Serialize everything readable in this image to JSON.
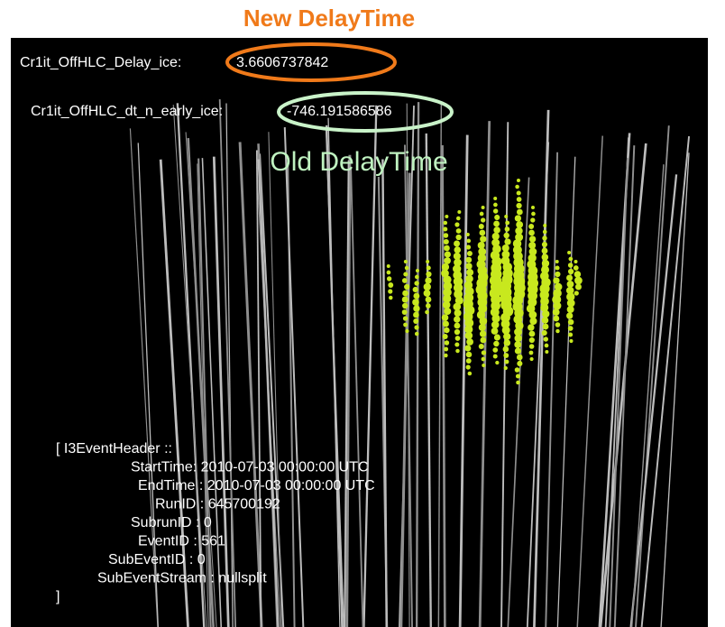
{
  "annotations": {
    "new_label": "New DelayTime",
    "old_label": "Old DelayTime"
  },
  "display": {
    "delay_ice": {
      "key": "Cr1it_OffHLC_Delay_ice:",
      "value": 3.6606737842
    },
    "dt_n_early_ice": {
      "key": "Cr1it_OffHLC_dt_n_early_ice:",
      "value": -746.191586586
    },
    "event_header": [
      "[ I3EventHeader ::",
      "StartTime: 2010-07-03 00:00:00 UTC",
      "EndTime : 2010-07-03 00:00:00 UTC",
      "RunID : 645700192",
      "SubrunID : 0",
      "EventID : 561",
      "SubEventID : 0",
      "SubEventStream : nullsplit",
      "]"
    ]
  }
}
